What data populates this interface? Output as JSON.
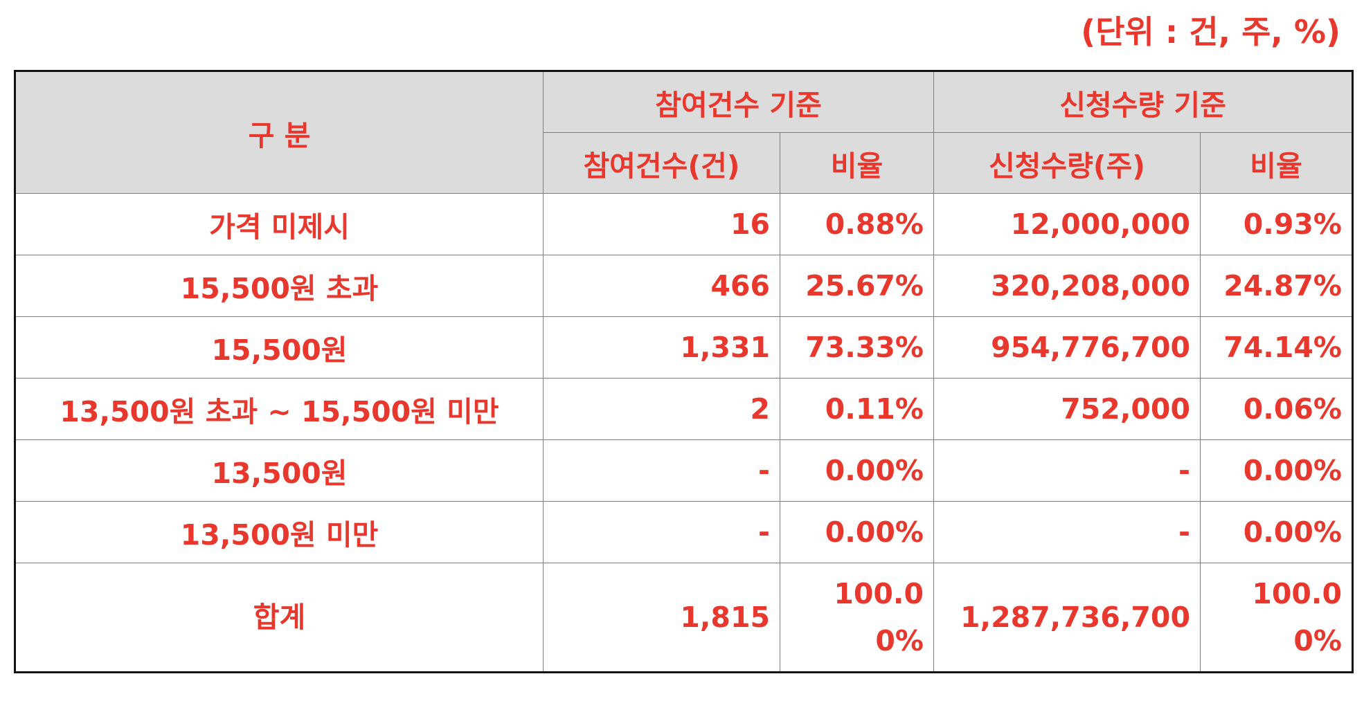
{
  "unit_note": "(단위 : 건, 주, %)",
  "table": {
    "header": {
      "category": "구 분",
      "group_participation": "참여건수 기준",
      "group_quantity": "신청수량 기준",
      "col_participation_count": "참여건수(건)",
      "col_participation_ratio": "비율",
      "col_quantity": "신청수량(주)",
      "col_quantity_ratio": "비율"
    },
    "rows": [
      {
        "label": "가격 미제시",
        "count": "16",
        "count_ratio": "0.88%",
        "quantity": "12,000,000",
        "quantity_ratio": "0.93%"
      },
      {
        "label": "15,500원 초과",
        "count": "466",
        "count_ratio": "25.67%",
        "quantity": "320,208,000",
        "quantity_ratio": "24.87%"
      },
      {
        "label": "15,500원",
        "count": "1,331",
        "count_ratio": "73.33%",
        "quantity": "954,776,700",
        "quantity_ratio": "74.14%"
      },
      {
        "label": "13,500원 초과 ~ 15,500원 미만",
        "count": "2",
        "count_ratio": "0.11%",
        "quantity": "752,000",
        "quantity_ratio": "0.06%"
      },
      {
        "label": "13,500원",
        "count": "-",
        "count_ratio": "0.00%",
        "quantity": "-",
        "quantity_ratio": "0.00%"
      },
      {
        "label": "13,500원 미만",
        "count": "-",
        "count_ratio": "0.00%",
        "quantity": "-",
        "quantity_ratio": "0.00%"
      }
    ],
    "total": {
      "label": "합계",
      "count": "1,815",
      "count_ratio": "100.0\n0%",
      "quantity": "1,287,736,700",
      "quantity_ratio": "100.0\n0%"
    }
  }
}
